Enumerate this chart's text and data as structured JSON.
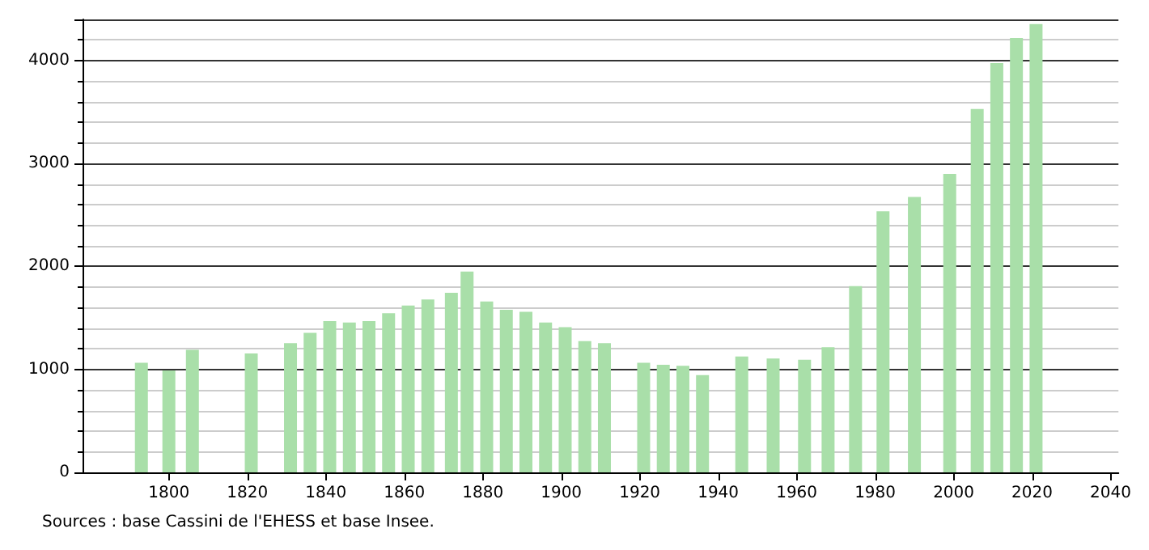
{
  "chart_data": {
    "type": "bar",
    "x": [
      1793,
      1800,
      1806,
      1821,
      1831,
      1836,
      1841,
      1846,
      1851,
      1856,
      1861,
      1866,
      1872,
      1876,
      1881,
      1886,
      1891,
      1896,
      1901,
      1906,
      1911,
      1921,
      1926,
      1931,
      1936,
      1946,
      1954,
      1962,
      1968,
      1975,
      1982,
      1990,
      1999,
      2006,
      2011,
      2016,
      2021
    ],
    "values": [
      1065,
      990,
      1190,
      1155,
      1255,
      1355,
      1470,
      1455,
      1470,
      1545,
      1620,
      1680,
      1745,
      1950,
      1660,
      1580,
      1560,
      1455,
      1410,
      1275,
      1255,
      1065,
      1045,
      1035,
      945,
      1125,
      1105,
      1095,
      1215,
      1810,
      2535,
      2675,
      2900,
      3530,
      3975,
      4220,
      4355
    ],
    "color": "#a9dfa9",
    "xlim": [
      1778,
      2042
    ],
    "xticks": [
      1800,
      1820,
      1840,
      1860,
      1880,
      1900,
      1920,
      1940,
      1960,
      1980,
      2000,
      2020,
      2040
    ],
    "ylim": [
      0,
      4400
    ],
    "yticks": [
      0,
      1000,
      2000,
      3000,
      4000
    ],
    "grid": "y",
    "annotations": [
      "Sources : base Cassini de l'EHESS et base Insee."
    ]
  }
}
